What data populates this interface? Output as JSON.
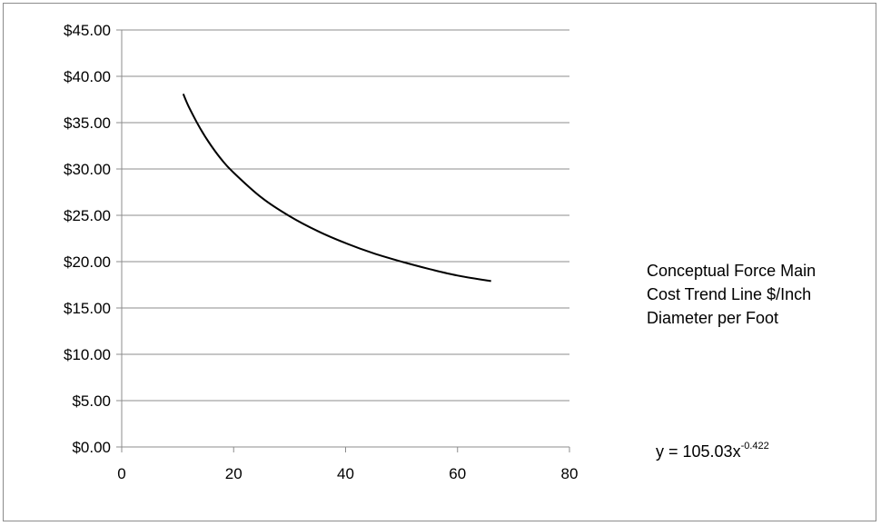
{
  "chart_data": {
    "type": "line",
    "title": "",
    "xlabel": "",
    "ylabel": "",
    "xlim": [
      0,
      80
    ],
    "ylim": [
      0,
      45
    ],
    "x_ticks": [
      "0",
      "20",
      "40",
      "60",
      "80"
    ],
    "x_tick_values": [
      0,
      20,
      40,
      60,
      80
    ],
    "y_ticks": [
      "$0.00",
      "$5.00",
      "$10.00",
      "$15.00",
      "$20.00",
      "$25.00",
      "$30.00",
      "$35.00",
      "$40.00",
      "$45.00"
    ],
    "y_tick_values": [
      0,
      5,
      10,
      15,
      20,
      25,
      30,
      35,
      40,
      45
    ],
    "grid": "horizontal",
    "legend_placement": "right",
    "series": [
      {
        "name": "Conceptual Force Main Cost Trend Line $/Inch Diameter per Foot",
        "color": "#000000",
        "x": [
          11,
          12,
          14,
          16,
          18,
          20,
          25,
          30,
          35,
          40,
          45,
          50,
          55,
          60,
          66
        ],
        "y": [
          38.1,
          36.7,
          34.4,
          32.5,
          30.9,
          29.6,
          26.9,
          24.9,
          23.3,
          22.0,
          20.9,
          20.0,
          19.2,
          18.5,
          17.9
        ]
      }
    ],
    "legend_lines": [
      "Conceptual Force Main",
      "Cost Trend Line $/Inch",
      "Diameter per Foot"
    ],
    "equation": {
      "prefix": "y = 105.03x",
      "exponent": "-0.422"
    }
  }
}
